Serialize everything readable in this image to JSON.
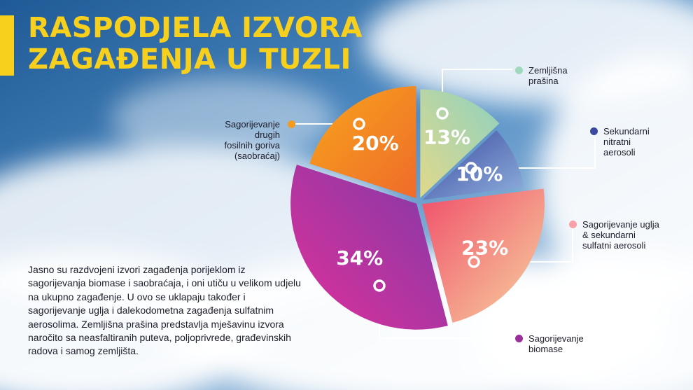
{
  "title": {
    "line1": "RASPODJELA IZVORA",
    "line2": "ZAGAĐENJA U TUZLI"
  },
  "description": "Jasno su razdvojeni izvori zagađenja porijeklom iz sagorijevanja biomase i saobraćaja, i oni utiču u velikom udjelu na ukupno zagađenje. U ovo se uklapaju također i sagorijevanje uglja i dalekodometna zagađenja sulfatnim aerosolima. Zemljišna prašina predstavlja mješavinu izvora naročito sa neasfaltiranih puteva, poljoprivrede, građevinskih radova i samog zemljišta.",
  "chart_data": {
    "type": "pie",
    "title": "RASPODJELA IZVORA ZAGAĐENJA U TUZLI",
    "slices": [
      {
        "label": "Zemljišna prašina",
        "value": 13,
        "display": "13%",
        "color": "#c9d29a"
      },
      {
        "label": "Sekundarni nitratni aerosoli",
        "value": 10,
        "display": "10%",
        "color": "#4f5cae"
      },
      {
        "label": "Sagorijevanje uglja & sekundarni sulfatni aerosoli",
        "value": 23,
        "display": "23%",
        "color": "#f3777f"
      },
      {
        "label": "Sagorijevanje biomase",
        "value": 34,
        "display": "34%",
        "color": "#a33aa2"
      },
      {
        "label": "Sagorijevanje drugih fosilnih goriva (saobraćaj)",
        "value": 20,
        "display": "20%",
        "color": "#f39a1f"
      }
    ],
    "legend": [
      {
        "lines": [
          "Zemljišna",
          "prašina"
        ],
        "color": "#9fd8bd"
      },
      {
        "lines": [
          "Sekundarni",
          "nitratni",
          "aerosoli"
        ],
        "color": "#3b4aa0"
      },
      {
        "lines": [
          "Sagorijevanje uglja",
          "& sekundarni",
          "sulfatni aerosoli"
        ],
        "color": "#f7a0a8"
      },
      {
        "lines": [
          "Sagorijevanje",
          "biomase"
        ],
        "color": "#9b2f9a"
      },
      {
        "lines": [
          "Sagorijevanje",
          "drugih",
          "fosilnih goriva",
          "(saobraćaj)"
        ],
        "color": "#f39a1f"
      }
    ]
  }
}
